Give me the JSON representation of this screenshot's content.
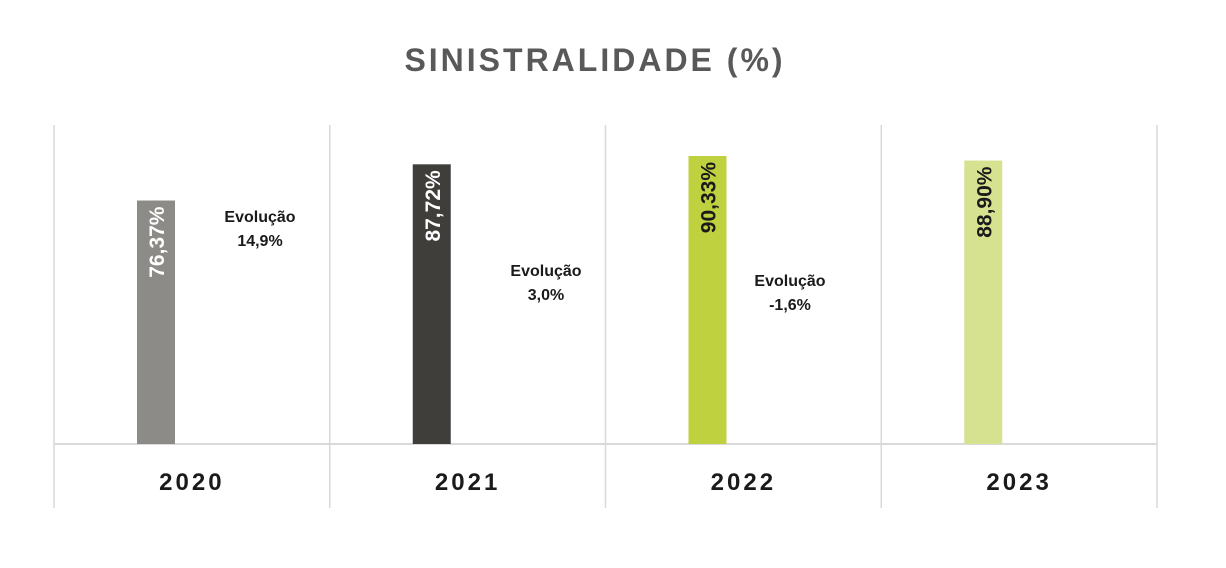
{
  "chart_data": {
    "type": "bar",
    "title": "SINISTRALIDADE (%)",
    "categories": [
      "2020",
      "2021",
      "2022",
      "2023"
    ],
    "values": [
      76.37,
      87.72,
      90.33,
      88.9
    ],
    "value_labels": [
      "76,37%",
      "87,72%",
      "90,33%",
      "88,90%"
    ],
    "bar_colors": [
      "#8c8b87",
      "#3f3e3b",
      "#bfd13f",
      "#d7e290"
    ],
    "annotations": [
      {
        "label": "Evolução",
        "value": "14,9%",
        "between": [
          "2020",
          "2021"
        ]
      },
      {
        "label": "Evolução",
        "value": "3,0%",
        "between": [
          "2021",
          "2022"
        ]
      },
      {
        "label": "Evolução",
        "value": "-1,6%",
        "between": [
          "2022",
          "2023"
        ]
      }
    ],
    "xlabel": "",
    "ylabel": "",
    "grid": false,
    "legend": "none"
  }
}
